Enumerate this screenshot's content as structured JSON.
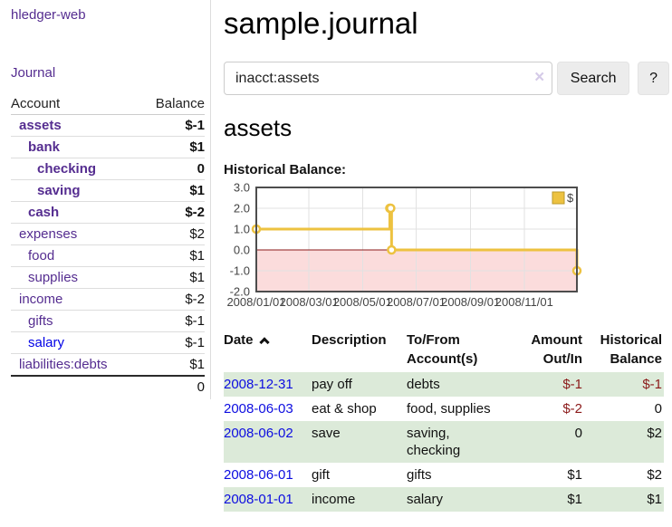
{
  "app": {
    "brand": "hledger-web"
  },
  "sidebar": {
    "journal_link": "Journal",
    "accounts": {
      "headers": [
        "Account",
        "Balance"
      ],
      "rows": [
        {
          "name": "assets",
          "indent": 1,
          "emph": true,
          "balance": "$-1",
          "bal": "neg-strong"
        },
        {
          "name": "bank",
          "indent": 2,
          "emph": true,
          "balance": "$1",
          "bal": "strong"
        },
        {
          "name": "checking",
          "indent": 3,
          "emph": true,
          "balance": "0",
          "bal": "strong"
        },
        {
          "name": "saving",
          "indent": 3,
          "emph": true,
          "balance": "$1",
          "bal": "strong"
        },
        {
          "name": "cash",
          "indent": 2,
          "emph": true,
          "balance": "$-2",
          "bal": "neg-strong"
        },
        {
          "name": "expenses",
          "indent": 1,
          "emph": false,
          "balance": "$2",
          "bal": ""
        },
        {
          "name": "food",
          "indent": 2,
          "emph": false,
          "balance": "$1",
          "bal": ""
        },
        {
          "name": "supplies",
          "indent": 2,
          "emph": false,
          "balance": "$1",
          "bal": ""
        },
        {
          "name": "income",
          "indent": 1,
          "emph": false,
          "balance": "$-2",
          "bal": "neg"
        },
        {
          "name": "gifts",
          "indent": 2,
          "emph": false,
          "balance": "$-1",
          "bal": "neg"
        },
        {
          "name": "salary",
          "indent": 2,
          "emph": false,
          "balance": "$-1",
          "bal": "neg",
          "link": "blue"
        },
        {
          "name": "liabilities:debts",
          "indent": 1,
          "emph": false,
          "balance": "$1",
          "bal": ""
        }
      ],
      "total": "0"
    }
  },
  "header": {
    "title": "sample.journal"
  },
  "search": {
    "value": "inacct:assets",
    "clear_icon": "×",
    "search_button": "Search",
    "help_button": "?"
  },
  "account_view": {
    "heading": "assets",
    "chart_label": "Historical Balance:"
  },
  "chart_data": {
    "type": "line",
    "title": "Historical Balance:",
    "x": [
      "2008-01-01",
      "2008-06-01",
      "2008-06-02",
      "2008-06-03",
      "2008-12-31"
    ],
    "series": [
      {
        "name": "$",
        "color": "#edc240",
        "step": true,
        "marker": "circle",
        "values": [
          1,
          2,
          2,
          0,
          -1
        ]
      }
    ],
    "xlim": [
      "2008-01-01",
      "2008-12-31"
    ],
    "ylim": [
      -2,
      3
    ],
    "y_ticks": [
      "3.0",
      "2.0",
      "1.0",
      "0.0",
      "-1.0",
      "-2.0"
    ],
    "x_ticks": [
      {
        "pos": "2008-01-01",
        "label": "2008/01/01"
      },
      {
        "pos": "2008-03-01",
        "label": "2008/03/01"
      },
      {
        "pos": "2008-05-01",
        "label": "2008/05/01"
      },
      {
        "pos": "2008-07-01",
        "label": "2008/07/01"
      },
      {
        "pos": "2008-09-01",
        "label": "2008/09/01"
      },
      {
        "pos": "2008-11-01",
        "label": "2008/11/01"
      }
    ],
    "grid": true,
    "legend": {
      "label": "$",
      "position": "top-right"
    },
    "colors": {
      "line": "#edc240",
      "marker_fill": "#ffffff",
      "legend_border": "#bb9a2a",
      "negative_fill": "#fbdcdc",
      "zero_line": "#8b1a1a",
      "border": "#4d4d4d",
      "grid": "#e2e2e2",
      "tick_text": "#444444"
    }
  },
  "register": {
    "headers": {
      "date": "Date",
      "description": "Description",
      "accounts": "To/From Account(s)",
      "amount": "Amount Out/In",
      "balance": "Historical Balance"
    },
    "sort": {
      "column": "date",
      "direction": "asc"
    },
    "rows": [
      {
        "date": "2008-12-31",
        "description": "pay off",
        "accounts": "debts",
        "amount": "$-1",
        "amount_neg": true,
        "balance": "$-1",
        "balance_neg": true
      },
      {
        "date": "2008-06-03",
        "description": "eat & shop",
        "accounts": "food, supplies",
        "amount": "$-2",
        "amount_neg": true,
        "balance": "0",
        "balance_neg": false
      },
      {
        "date": "2008-06-02",
        "description": "save",
        "accounts": "saving, checking",
        "amount": "0",
        "amount_neg": false,
        "balance": "$2",
        "balance_neg": false
      },
      {
        "date": "2008-06-01",
        "description": "gift",
        "accounts": "gifts",
        "amount": "$1",
        "amount_neg": false,
        "balance": "$2",
        "balance_neg": false
      },
      {
        "date": "2008-01-01",
        "description": "income",
        "accounts": "salary",
        "amount": "$1",
        "amount_neg": false,
        "balance": "$1",
        "balance_neg": false
      }
    ]
  },
  "colors": {
    "accent_purple": "#552d90",
    "link_blue": "#0000e6",
    "negative_strong": "#8b1a1a",
    "negative_soft": "#c06a6a",
    "row_stripe_green": "#dcead9",
    "button_bg": "#ececec"
  }
}
